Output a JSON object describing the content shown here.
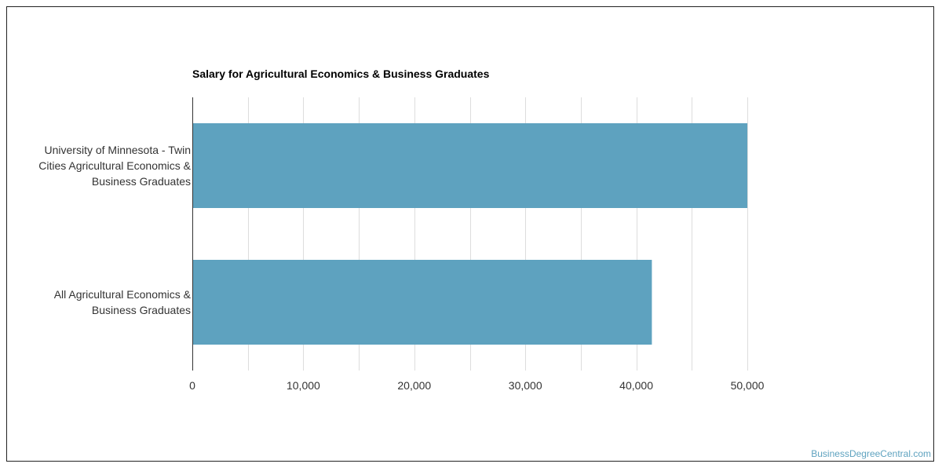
{
  "chart_data": {
    "type": "bar",
    "orientation": "horizontal",
    "title": "Salary for Agricultural Economics & Business Graduates",
    "categories": [
      [
        "University of Minnesota - Twin",
        "Cities Agricultural Economics &",
        "Business Graduates"
      ],
      [
        "All Agricultural Economics &",
        "Business Graduates"
      ]
    ],
    "values": [
      50000,
      41400
    ],
    "xlim": [
      0,
      50000
    ],
    "xticks": [
      0,
      10000,
      20000,
      30000,
      40000,
      50000
    ],
    "xtick_labels": [
      "0",
      "10,000",
      "20,000",
      "30,000",
      "40,000",
      "50,000"
    ],
    "grid": true,
    "bar_color": "#5ea2bf"
  },
  "watermark": "BusinessDegreeCentral.com"
}
